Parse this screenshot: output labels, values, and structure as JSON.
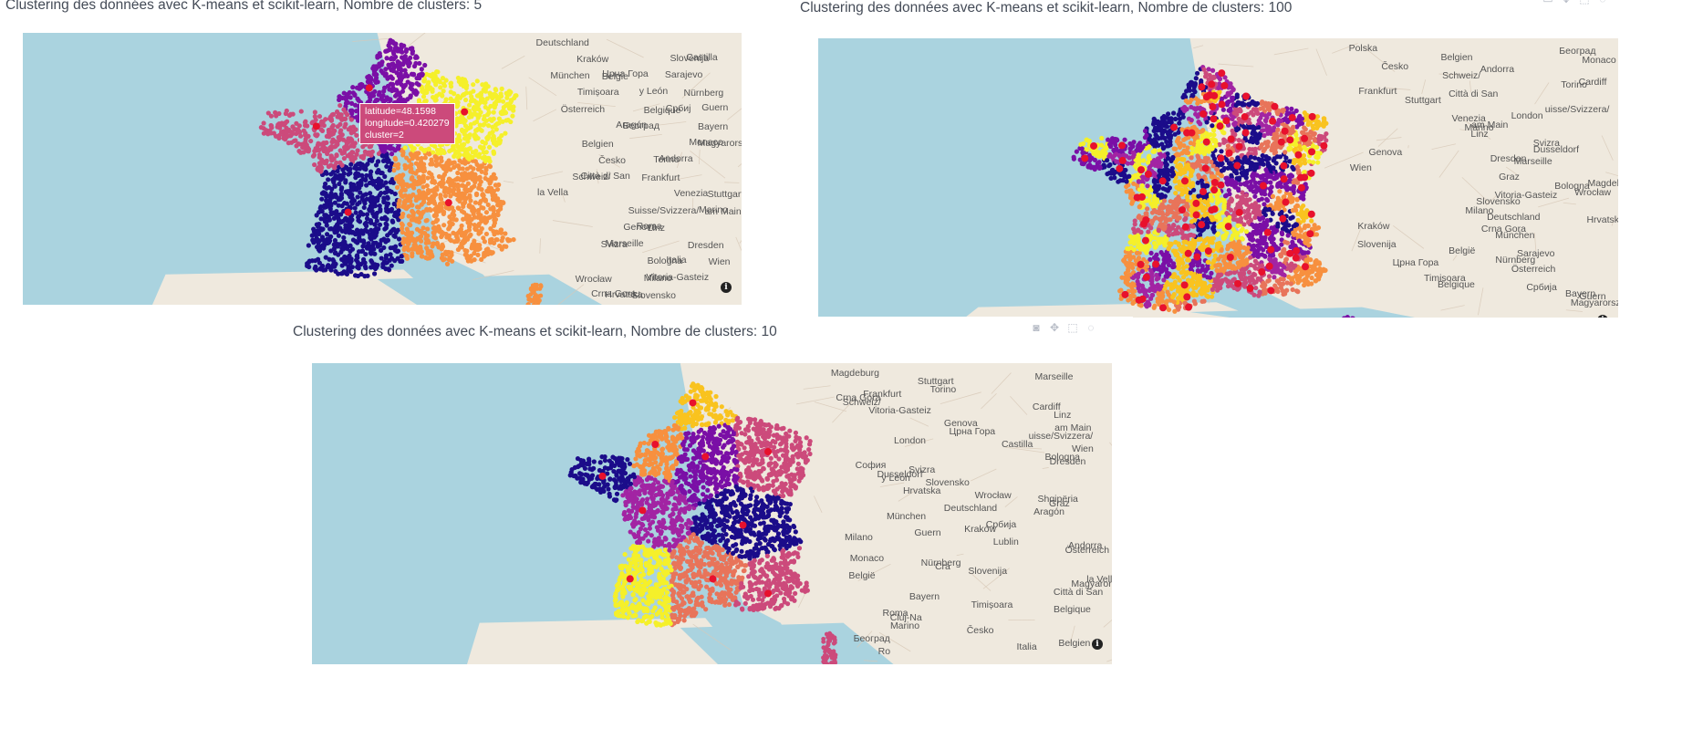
{
  "titles": {
    "t5": "Clustering des données avec K-means et scikit-learn, Nombre de clusters: 5",
    "t100": "Clustering des données avec K-means et scikit-learn, Nombre de clusters: 100",
    "t10": "Clustering des données avec K-means et scikit-learn, Nombre de clusters: 10"
  },
  "tooltip": {
    "line1": "latitude=48.1598",
    "line2": "longitude=0.420279",
    "line3": "cluster=2"
  },
  "info_glyph": "i",
  "modebar_icons": [
    "camera-icon",
    "pan-icon",
    "box-select-icon",
    "lasso-icon"
  ],
  "palette": {
    "sea": "#aad3df",
    "land": "#efe9de",
    "centroid": "#e8112d",
    "c0": "#1b0c8a",
    "c1": "#7a0fa6",
    "c2": "#cc4a7b",
    "c3": "#f7903f",
    "c4": "#f5f02a",
    "c5": "#a224a3",
    "c6": "#f9c31f",
    "c7": "#e8745a"
  },
  "map_labels": {
    "map5": [
      "Deutschland",
      "Belgie",
      "Belgique",
      "Belgien",
      "Frankfurt",
      "am Main",
      "Dresden",
      "Wrocław",
      "Kraków",
      "Nürnberg",
      "Bayern",
      "Česko",
      "Stuttgart",
      "Linz",
      "Wien",
      "Slovensko",
      "München",
      "Österreich",
      "Magyarország",
      "Schweiz/",
      "Suisse/Svizzera/",
      "Svizra",
      "Milano",
      "Slovenija",
      "Timișoara",
      "Београд",
      "Torino",
      "Venezia",
      "Genova",
      "Bologna",
      "Hrvatska",
      "Sarajevo",
      "Србиј",
      "Monaco",
      "Città di San",
      "Marino",
      "Marseille",
      "Vitoria-Gasteiz",
      "Castilla",
      "y León",
      "Aragón",
      "Andorra",
      "la Vella",
      "Roma",
      "Italia",
      "Crna Gora",
      "Црна Гора",
      "Guern"
    ],
    "map100": [
      "Polska",
      "Cardiff",
      "London",
      "Dusseldorf",
      "Magdeburg",
      "Deutschland",
      "België",
      "Belgique",
      "Belgien",
      "Frankfurt",
      "am Main",
      "Dresden",
      "Wrocław",
      "Kraków",
      "Nürnberg",
      "Bayern",
      "Česko",
      "Stuttgart",
      "Linz",
      "Wien",
      "Slovensko",
      "München",
      "Österreich",
      "Magyarország",
      "Schweiz/",
      "uisse/Svizzera/",
      "Svizra",
      "Graz",
      "Milano",
      "Slovenija",
      "Timișoara",
      "Београд",
      "Torino",
      "Venezia",
      "Genova",
      "Bologna",
      "Hrvatska",
      "Sarajevo",
      "Србија",
      "Monaco",
      "Città di San",
      "Marino",
      "Marseille",
      "Vitoria-Gasteiz",
      "Crna Gora",
      "Црна Гора",
      "Guern",
      "Andorra"
    ],
    "map10": [
      "Magdeburg",
      "Cardiff",
      "London",
      "Dusseldorf",
      "Deutschland",
      "Lublin",
      "België",
      "Belgique",
      "Belgien",
      "Frankfurt",
      "am Main",
      "Dresden",
      "Wrocław",
      "Kraków",
      "Nürnberg",
      "Bayern",
      "Česko",
      "Stuttgart",
      "Linz",
      "Wien",
      "Slovensko",
      "München",
      "Österreich",
      "Magyarország",
      "Cluj-Na",
      "Ro",
      "Schweiz/",
      "uisse/Svizzera/",
      "Svizra",
      "Graz",
      "Milano",
      "Slovenija",
      "Timișoara",
      "Београд",
      "Torino",
      "Genova",
      "Bologna",
      "Hrvatska",
      "Србија",
      "Monaco",
      "Città di San",
      "Marino",
      "Marseille",
      "Vitoria-Gasteiz",
      "Castilla",
      "y León",
      "Aragón",
      "Andorra",
      "la Vella",
      "Roma",
      "Italia",
      "Crna Gora",
      "Црна Гора",
      "София",
      "Shqipëria",
      "Guern",
      "Cra"
    ]
  }
}
